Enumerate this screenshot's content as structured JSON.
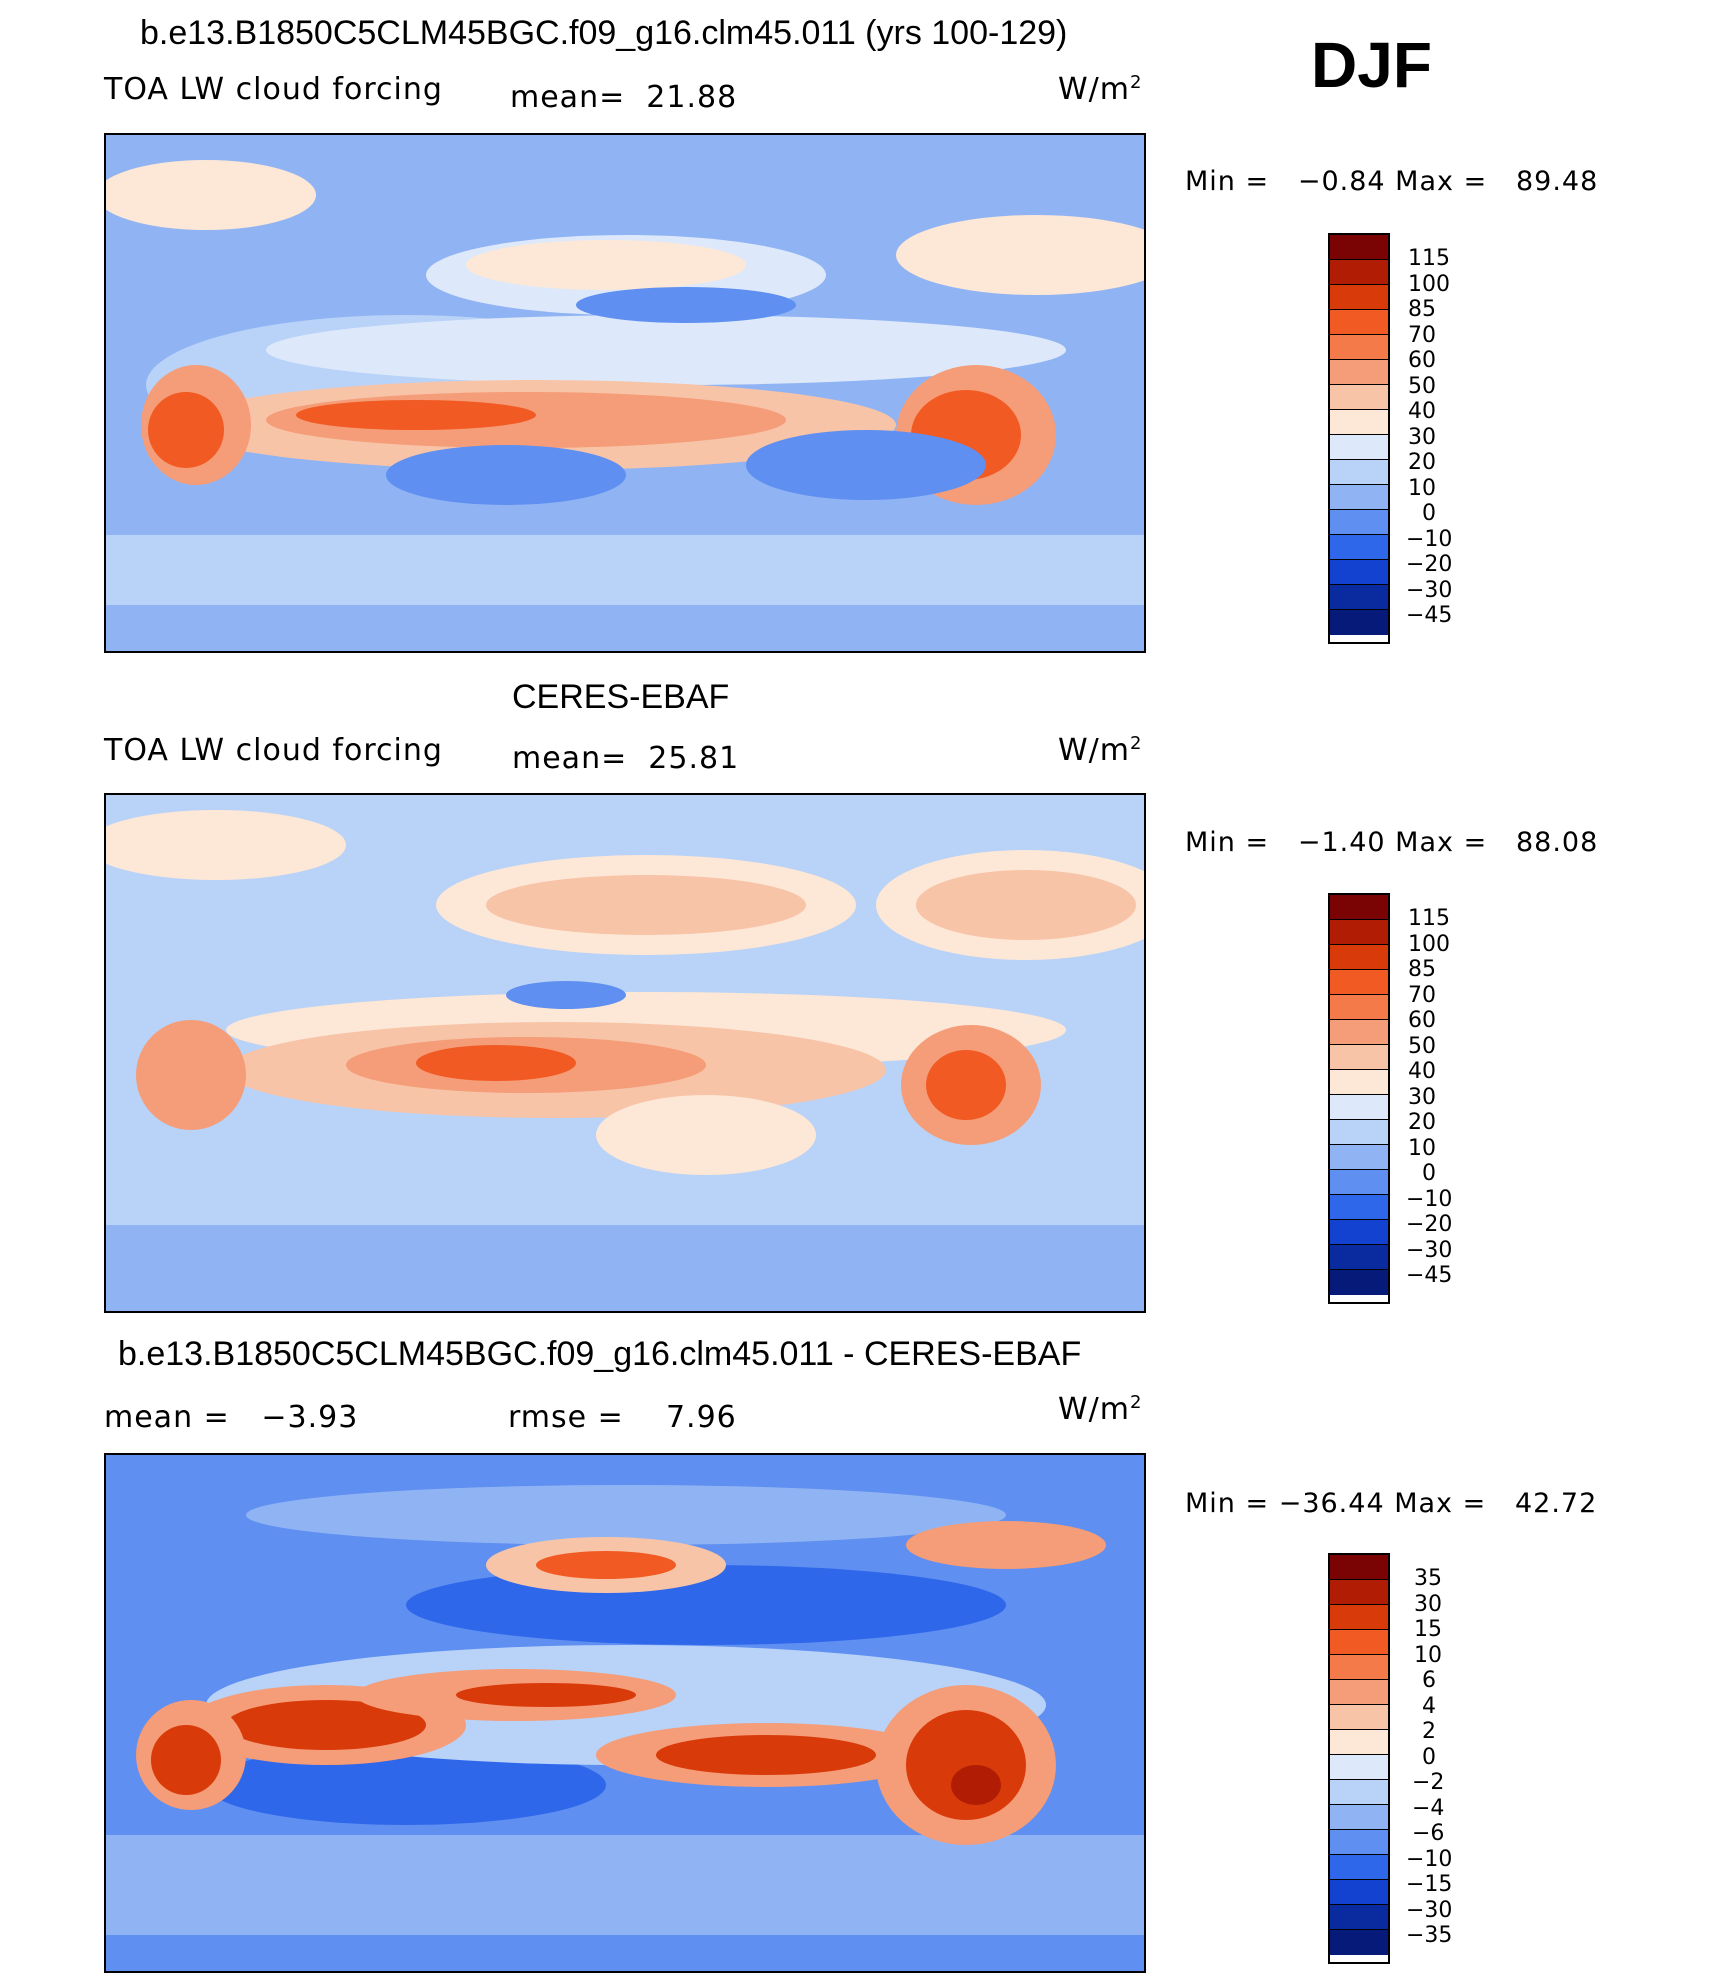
{
  "season": "DJF",
  "panels": [
    {
      "title": "b.e13.B1850C5CLM45BGC.f09_g16.clm45.011 (yrs 100-129)",
      "left_label": "TOA LW cloud forcing",
      "center_label": "mean=",
      "center_value": "21.88",
      "unit": "W/m",
      "unit_exp": "2",
      "stats": "Min =   −0.84 Max =   89.48",
      "colorbar_labels": [
        "115",
        "100",
        "85",
        "70",
        "60",
        "50",
        "40",
        "30",
        "20",
        "10",
        "0",
        "−10",
        "−20",
        "−30",
        "−45"
      ]
    },
    {
      "title": "CERES-EBAF",
      "left_label": "TOA LW cloud forcing",
      "center_label": "mean=",
      "center_value": "25.81",
      "unit": "W/m",
      "unit_exp": "2",
      "stats": "Min =   −1.40 Max =   88.08",
      "colorbar_labels": [
        "115",
        "100",
        "85",
        "70",
        "60",
        "50",
        "40",
        "30",
        "20",
        "10",
        "0",
        "−10",
        "−20",
        "−30",
        "−45"
      ]
    },
    {
      "title": "b.e13.B1850C5CLM45BGC.f09_g16.clm45.011 - CERES-EBAF",
      "left_label": "mean =",
      "left_value": "−3.93",
      "center_label": "rmse =",
      "center_value": "7.96",
      "unit": "W/m",
      "unit_exp": "2",
      "stats": "Min = −36.44 Max =   42.72",
      "colorbar_labels": [
        "35",
        "30",
        "15",
        "10",
        "6",
        "4",
        "2",
        "0",
        "−2",
        "−4",
        "−6",
        "−10",
        "−15",
        "−30",
        "−35"
      ]
    }
  ],
  "colors": {
    "colorbar": [
      "#7a0403",
      "#b01d04",
      "#d93a0a",
      "#f15a22",
      "#f47a4a",
      "#f59c78",
      "#f8c4a8",
      "#fde7d6",
      "#dde9fa",
      "#b9d2f7",
      "#90b4f3",
      "#5f8ff0",
      "#2f67ea",
      "#1242cf",
      "#0a2aa0",
      "#061a7a"
    ],
    "ocean_base": "#8fb3f4"
  }
}
